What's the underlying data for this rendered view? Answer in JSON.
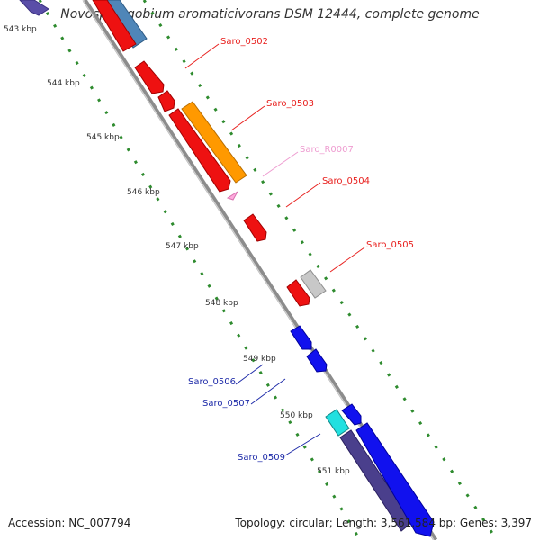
{
  "title": "Novosphingobium aromaticivorans DSM 12444, complete genome",
  "accession": "Accession: NC_007794",
  "topology": "Topology: circular; Length: 3,561,584 bp; Genes: 3,397",
  "ruler_ticks": [
    "543 kbp",
    "544 kbp",
    "545 kbp",
    "546 kbp",
    "547 kbp",
    "548 kbp",
    "549 kbp",
    "550 kbp",
    "551 kbp"
  ],
  "gene_labels": [
    {
      "text": "Saro_0502",
      "color": "#e8201e"
    },
    {
      "text": "Saro_0503",
      "color": "#e8201e"
    },
    {
      "text": "Saro_R0007",
      "color": "#ee9bd0"
    },
    {
      "text": "Saro_0504",
      "color": "#e8201e"
    },
    {
      "text": "Saro_0505",
      "color": "#e8201e"
    },
    {
      "text": "Saro_0506",
      "color": "#1d2aa8"
    },
    {
      "text": "Saro_0507",
      "color": "#1d2aa8"
    },
    {
      "text": "Saro_0509",
      "color": "#1d2aa8"
    }
  ],
  "colors": {
    "backbone": "#8a8a8a",
    "ruler_dots": "#2e8b2e",
    "forward_gene": "#ff0000",
    "orange_gene": "#ff9900",
    "grey_gene": "#bdbdbd",
    "rna_gene": "#ffaadd",
    "reverse_gene": "#0000ee",
    "cyan_gene": "#22e0e0",
    "dark_gene": "#4a3f8c",
    "steel_gene": "#4f86b8"
  }
}
